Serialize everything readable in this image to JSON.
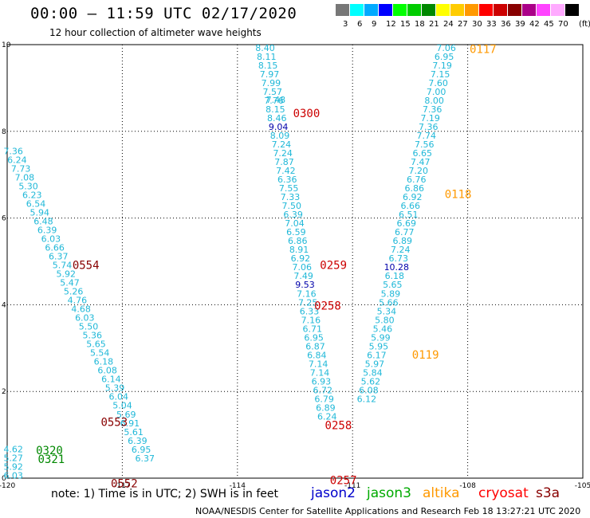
{
  "header": {
    "title": "00:00 – 11:59 UTC 02/17/2020",
    "subtitle": "12 hour collection of altimeter wave heights"
  },
  "legend": {
    "labels": [
      "3",
      "6",
      "9",
      "12",
      "15",
      "18",
      "21",
      "24",
      "27",
      "30",
      "33",
      "36",
      "39",
      "42",
      "45",
      "70",
      "(ft)"
    ],
    "colors": [
      "#777777",
      "#00ffff",
      "#00aaff",
      "#0000ff",
      "#00ff00",
      "#00cc00",
      "#008800",
      "#ffff00",
      "#ffcc00",
      "#ff9900",
      "#ff0000",
      "#cc0000",
      "#880000",
      "#aa0088",
      "#ff44ff",
      "#ffaaff",
      "#000000"
    ]
  },
  "map": {
    "lon_ticks": [
      "-120",
      "-117",
      "-114",
      "-111",
      "-108",
      "-105"
    ],
    "lat_ticks": [
      "0",
      "2",
      "4",
      "6",
      "8",
      "10"
    ],
    "track_color": "#20b8d8",
    "tracks": [
      {
        "lon0": -119.84,
        "lat0": 7.55,
        "dlon": 0.098,
        "dlat": -0.2025,
        "values": [
          "7.36",
          "6.24",
          "7.73",
          "7.08",
          "5.30",
          "6.23",
          "6.54",
          "5.94",
          "6.48",
          "6.39",
          "6.03",
          "6.66",
          "6.37",
          "5.74",
          "5.92",
          "5.47",
          "5.26",
          "4.76",
          "4.68",
          "6.03",
          "5.50",
          "5.36",
          "5.65",
          "5.54",
          "6.18",
          "6.08",
          "6.14",
          "5.39",
          "6.04",
          "5.04",
          "5.69",
          "6.91",
          "5.61",
          "6.39",
          "6.95",
          "6.37"
        ]
      },
      {
        "lon0": -119.84,
        "lat0": 0.67,
        "dlon": 0.0,
        "dlat": -0.2025,
        "values": [
          "4.62",
          "5.27",
          "5.92",
          "6.03"
        ]
      },
      {
        "lon0": -113.28,
        "lat0": 9.93,
        "dlon": 0.0385,
        "dlat": -0.2025,
        "values": [
          "8.40",
          "8.11",
          "8.15",
          "7.97",
          "7.99",
          "7.57",
          "7.76",
          "8.15",
          "8.46",
          "9.04",
          "8.09",
          "7.24",
          "7.24",
          "7.87",
          "7.42",
          "6.36",
          "7.55",
          "7.33",
          "7.50",
          "6.39",
          "7.04",
          "6.59",
          "6.86",
          "8.91",
          "6.92",
          "7.06",
          "7.49",
          "9.53",
          "7.16",
          "7.25",
          "6.33",
          "7.16",
          "6.71",
          "6.95",
          "6.87",
          "6.84",
          "7.14",
          "7.14",
          "6.93",
          "6.72",
          "6.79",
          "6.89",
          "6.24"
        ]
      },
      {
        "lon0": -113.0,
        "lat0": 8.73,
        "dlon": 0.0,
        "dlat": -0.2025,
        "values": [
          "7.48"
        ]
      },
      {
        "lon0": -108.56,
        "lat0": 9.93,
        "dlon": -0.0518,
        "dlat": -0.2025,
        "values": [
          "7.06",
          "6.95",
          "7.19",
          "7.15",
          "7.60",
          "7.00",
          "8.00",
          "7.36",
          "7.19",
          "7.36",
          "7.74",
          "7.56",
          "6.65",
          "7.47",
          "7.20",
          "6.76",
          "6.86",
          "6.92",
          "6.66",
          "6.51",
          "6.69",
          "6.77",
          "6.89",
          "7.24",
          "6.73",
          "10.28",
          "6.18",
          "5.65",
          "5.89",
          "5.66",
          "5.34",
          "5.80",
          "5.46",
          "5.99",
          "5.95",
          "6.17",
          "5.97",
          "5.84",
          "5.62",
          "6.08",
          "6.12"
        ]
      }
    ],
    "dark_values": [
      "9.04",
      "9.53",
      "10.28"
    ],
    "passes": [
      {
        "label": "0117",
        "lon": -107.95,
        "lat": 9.9,
        "color": "#ff9900"
      },
      {
        "label": "0118",
        "lon": -108.6,
        "lat": 6.55,
        "color": "#ff9900"
      },
      {
        "label": "0119",
        "lon": -109.45,
        "lat": 2.85,
        "color": "#ff9900"
      },
      {
        "label": "0300",
        "lon": -112.55,
        "lat": 8.42,
        "color": "#cc0000"
      },
      {
        "label": "0259",
        "lon": -111.85,
        "lat": 4.92,
        "color": "#cc0000"
      },
      {
        "label": "0258",
        "lon": -112.0,
        "lat": 3.98,
        "color": "#cc0000"
      },
      {
        "label": "0258",
        "lon": -111.72,
        "lat": 1.22,
        "color": "#cc0000"
      },
      {
        "label": "0257",
        "lon": -111.59,
        "lat": -0.05,
        "color": "#cc0000"
      },
      {
        "label": "0554",
        "lon": -118.3,
        "lat": 4.92,
        "color": "#880000"
      },
      {
        "label": "0553",
        "lon": -117.56,
        "lat": 1.3,
        "color": "#880000"
      },
      {
        "label": "0552",
        "lon": -117.3,
        "lat": -0.12,
        "color": "#880000"
      },
      {
        "label": "0320",
        "lon": -119.25,
        "lat": 0.64,
        "color": "#008800"
      },
      {
        "label": "0321",
        "lon": -119.2,
        "lat": 0.44,
        "color": "#008800"
      }
    ]
  },
  "footer": {
    "note": "note: 1) Time is in UTC; 2) SWH is in feet",
    "satellites": [
      {
        "name": "jason2",
        "color": "#0000cc"
      },
      {
        "name": "jason3",
        "color": "#00aa00"
      },
      {
        "name": "altika",
        "color": "#ff9900"
      },
      {
        "name": "cryosat",
        "color": "#ff0000"
      },
      {
        "name": "s3a",
        "color": "#880000"
      }
    ],
    "credit": "NOAA/NESDIS Center for Satellite Applications and Research   Feb 18 13:27:21 UTC 2020"
  }
}
